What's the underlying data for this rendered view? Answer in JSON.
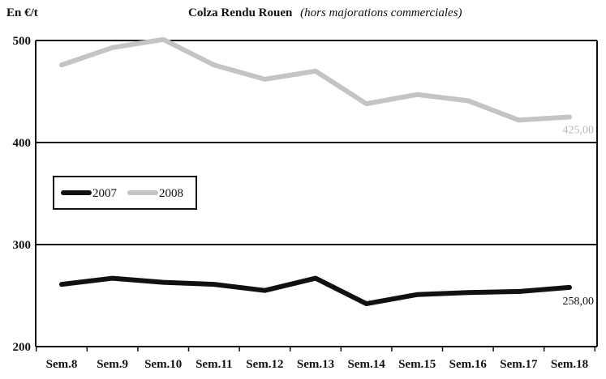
{
  "chart_data": {
    "type": "line",
    "title": "Colza Rendu Rouen",
    "subtitle": "(hors majorations commerciales)",
    "ylabel": "En €/t",
    "xlabel": "",
    "categories": [
      "Sem.8",
      "Sem.9",
      "Sem.10",
      "Sem.11",
      "Sem.12",
      "Sem.13",
      "Sem.14",
      "Sem.15",
      "Sem.16",
      "Sem.17",
      "Sem.18"
    ],
    "ylim": [
      200,
      500
    ],
    "yticks": [
      200,
      300,
      400,
      500
    ],
    "grid": true,
    "legend_position": "middle-left",
    "series": [
      {
        "name": "2007",
        "color": "#111111",
        "values": [
          261,
          267,
          263,
          261,
          255,
          267,
          242,
          251,
          253,
          254,
          258
        ],
        "end_label": "258,00"
      },
      {
        "name": "2008",
        "color": "#c4c4c4",
        "values": [
          476,
          493,
          501,
          476,
          462,
          470,
          438,
          447,
          441,
          422,
          425
        ],
        "end_label": "425,00"
      }
    ]
  }
}
